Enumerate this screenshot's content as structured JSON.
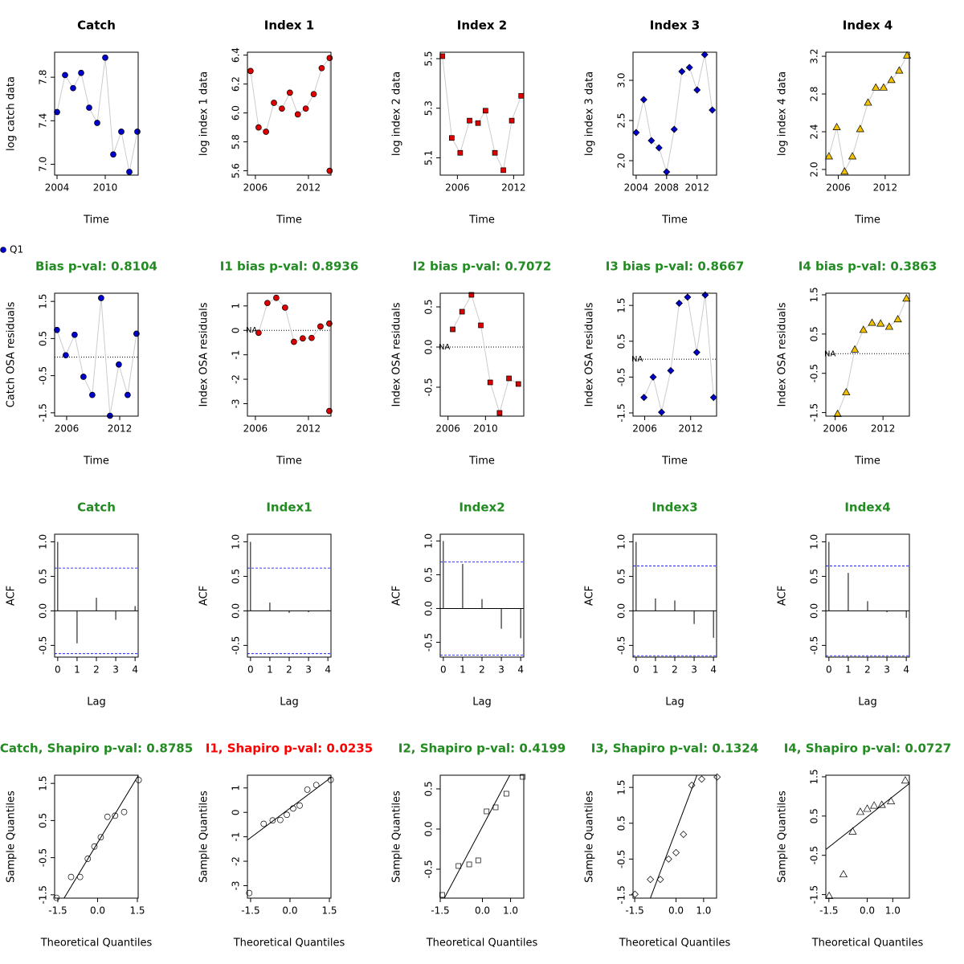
{
  "legend": {
    "label": "Q1",
    "color": "#0000cd"
  },
  "chart_data": [
    {
      "type": "line",
      "title": "Catch",
      "xlabel": "Time",
      "ylabel": "log catch data",
      "marker": "circle",
      "color": "#0000cd",
      "x": [
        2004,
        2005,
        2006,
        2007,
        2008,
        2009,
        2010,
        2011,
        2012,
        2013,
        2014
      ],
      "values": [
        7.48,
        7.82,
        7.7,
        7.84,
        7.52,
        7.38,
        7.98,
        7.09,
        7.3,
        6.93,
        7.3
      ],
      "xlim": [
        2003.7,
        2014.1
      ],
      "ylim": [
        6.9,
        8.03
      ],
      "xticks": [
        2004,
        2010
      ],
      "yticks": [
        {
          "value": 7,
          "label": "7.0"
        },
        7.4,
        7.8
      ]
    },
    {
      "type": "line",
      "title": "Index 1",
      "xlabel": "Time",
      "ylabel": "log index 1 data",
      "marker": "circle",
      "color": "#dd0000",
      "x": [
        2005.45,
        2006.36,
        2007.2,
        2008.1,
        2009.0,
        2009.9,
        2010.8,
        2011.7,
        2012.6,
        2013.5,
        2014.4,
        2014.4
      ],
      "values": [
        6.29,
        5.9,
        5.87,
        6.07,
        6.03,
        6.14,
        5.99,
        6.03,
        6.13,
        6.31,
        6.38,
        5.6
      ],
      "xlim": [
        2005.1,
        2014.55
      ],
      "ylim": [
        5.57,
        6.42
      ],
      "xticks": [
        2006,
        2012
      ],
      "yticks": [
        5.6,
        5.8,
        {
          "value": 6,
          "label": "6.0"
        },
        6.2,
        6.4
      ]
    },
    {
      "type": "line",
      "title": "Index 2",
      "xlabel": "Time",
      "ylabel": "log index 2 data",
      "marker": "square",
      "color": "#dd0000",
      "x": [
        2004.4,
        2005.4,
        2006.3,
        2007.3,
        2008.2,
        2009.0,
        2010.0,
        2010.9,
        2011.8,
        2012.8
      ],
      "values": [
        5.51,
        5.18,
        5.12,
        5.25,
        5.24,
        5.29,
        5.12,
        5.05,
        5.25,
        5.35
      ],
      "xlim": [
        2004.17,
        2013.08
      ],
      "ylim": [
        5.03,
        5.526
      ],
      "xticks": [
        2006,
        2012
      ],
      "yticks": [
        5.1,
        5.3,
        5.5
      ]
    },
    {
      "type": "line",
      "title": "Index 3",
      "xlabel": "Time",
      "ylabel": "log index 3 data",
      "marker": "diamond",
      "color": "#0000cd",
      "x": [
        2004,
        2005,
        2006,
        2007,
        2008,
        2009,
        2010,
        2011,
        2012,
        2013,
        2014
      ],
      "values": [
        2.35,
        2.76,
        2.25,
        2.16,
        1.86,
        2.39,
        3.11,
        3.16,
        2.88,
        3.32,
        2.63
      ],
      "xlim": [
        2003.59,
        2014.56
      ],
      "ylim": [
        1.82,
        3.35
      ],
      "xticks": [
        2004,
        2008,
        2012
      ],
      "yticks": [
        {
          "value": 2,
          "label": "2.0"
        },
        2.5,
        {
          "value": 3,
          "label": "3.0"
        }
      ]
    },
    {
      "type": "line",
      "title": "Index 4",
      "xlabel": "Time",
      "ylabel": "log index 4 data",
      "marker": "triangle",
      "color": "#f2c200",
      "x": [
        2004.8,
        2005.8,
        2006.8,
        2007.8,
        2008.8,
        2009.8,
        2010.8,
        2011.8,
        2012.8,
        2013.8,
        2014.8
      ],
      "values": [
        2.14,
        2.45,
        1.98,
        2.14,
        2.43,
        2.71,
        2.87,
        2.87,
        2.95,
        3.05,
        3.21
      ],
      "xlim": [
        2004.4,
        2015.1
      ],
      "ylim": [
        1.94,
        3.243
      ],
      "xticks": [
        2006,
        2012
      ],
      "yticks": [
        {
          "value": 2,
          "label": "2.0"
        },
        2.4,
        2.8,
        3.2
      ]
    },
    {
      "type": "line",
      "title": "Bias p-val: 0.8104",
      "title_color": "#228b22",
      "xlabel": "Time",
      "ylabel": "Catch OSA residuals",
      "marker": "circle",
      "color": "#0000cd",
      "hline": 0,
      "x": [
        2004.9,
        2005.9,
        2006.9,
        2007.9,
        2008.9,
        2009.9,
        2010.9,
        2011.9,
        2012.9,
        2013.9
      ],
      "values": [
        0.73,
        0.05,
        0.6,
        -0.53,
        -1.02,
        1.59,
        -1.58,
        -0.2,
        -1.02,
        0.63
      ],
      "xlim": [
        2004.64,
        2014.09
      ],
      "ylim": [
        -1.59,
        1.72
      ],
      "xticks": [
        2006,
        2012
      ],
      "yticks": [
        -1.5,
        -0.5,
        0.5,
        1.5
      ]
    },
    {
      "type": "line",
      "title": "I1 bias p-val: 0.8936",
      "title_color": "#228b22",
      "xlabel": "Time",
      "ylabel": "Index OSA residuals",
      "marker": "circle",
      "color": "#dd0000",
      "hline": 0,
      "annotation": "NA",
      "x": [
        2006.36,
        2007.36,
        2008.36,
        2009.36,
        2010.36,
        2011.36,
        2012.36,
        2013.36,
        2014.36,
        2014.36
      ],
      "values": [
        -0.1,
        1.12,
        1.33,
        0.93,
        -0.47,
        -0.33,
        -0.31,
        0.16,
        0.28,
        -3.3
      ],
      "xlim": [
        2005.1,
        2014.55
      ],
      "ylim": [
        -3.51,
        1.52
      ],
      "xticks": [
        2006,
        2012
      ],
      "yticks": [
        -3,
        -2,
        -1,
        0,
        1
      ]
    },
    {
      "type": "line",
      "title": "I2 bias p-val: 0.7072",
      "title_color": "#228b22",
      "xlabel": "Time",
      "ylabel": "Index OSA residuals",
      "marker": "square",
      "color": "#dd0000",
      "hline": 0,
      "annotation": "NA",
      "x": [
        2006.5,
        2007.5,
        2008.5,
        2009.5,
        2010.5,
        2011.5,
        2012.5,
        2013.5
      ],
      "values": [
        0.22,
        0.44,
        0.65,
        0.27,
        -0.44,
        -0.82,
        -0.39,
        -0.46
      ],
      "xlim": [
        2005.17,
        2014.08
      ],
      "ylim": [
        -0.86,
        0.67
      ],
      "xticks": [
        2006,
        2010
      ],
      "yticks": [
        -0.5,
        {
          "value": 0,
          "label": "0.0"
        },
        0.5
      ]
    },
    {
      "type": "line",
      "title": "I3 bias p-val: 0.8667",
      "title_color": "#228b22",
      "xlabel": "Time",
      "ylabel": "Index OSA residuals",
      "marker": "diamond",
      "color": "#0000cd",
      "hline": 0,
      "annotation": "NA",
      "x": [
        2005.9,
        2007.1,
        2008.2,
        2009.4,
        2010.5,
        2011.6,
        2012.8,
        2013.9,
        2015.0
      ],
      "values": [
        -1.07,
        -0.5,
        -1.48,
        -0.32,
        1.56,
        1.73,
        0.19,
        1.79,
        -1.07
      ],
      "xlim": [
        2004.47,
        2015.39
      ],
      "ylim": [
        -1.59,
        1.84
      ],
      "xticks": [
        2006,
        2012
      ],
      "yticks": [
        -1.5,
        -0.5,
        0.5,
        1.5
      ]
    },
    {
      "type": "line",
      "title": "I4 bias p-val: 0.3863",
      "title_color": "#228b22",
      "xlabel": "Time",
      "ylabel": "Index OSA residuals",
      "marker": "triangle",
      "color": "#f2c200",
      "hline": 0,
      "annotation": "NA",
      "x": [
        2006.3,
        2007.38,
        2008.46,
        2009.54,
        2010.62,
        2011.7,
        2012.78,
        2013.86,
        2014.94
      ],
      "values": [
        -1.53,
        -0.98,
        0.11,
        0.61,
        0.79,
        0.77,
        0.69,
        0.88,
        1.41
      ],
      "xlim": [
        2004.82,
        2015.31
      ],
      "ylim": [
        -1.59,
        1.54
      ],
      "xticks": [
        2006,
        2012
      ],
      "yticks": [
        -1.5,
        -0.5,
        0.5,
        1.5
      ]
    },
    {
      "type": "acf",
      "title": "Catch",
      "title_color": "#228b22",
      "xlabel": "Lag",
      "ylabel": "ACF",
      "hline": 0,
      "conf": 0.62,
      "x": [
        0,
        1,
        2,
        3,
        4
      ],
      "values": [
        1.0,
        -0.47,
        0.19,
        -0.13,
        0.07
      ],
      "xlim": [
        -0.16,
        4.16
      ],
      "ylim": [
        -0.67,
        1.11
      ],
      "xticks": [
        0,
        1,
        2,
        3,
        4
      ],
      "yticks": [
        -0.5,
        {
          "value": 0,
          "label": "0.0"
        },
        0.5,
        {
          "value": 1,
          "label": "1.0"
        }
      ]
    },
    {
      "type": "acf",
      "title": "Index1",
      "title_color": "#228b22",
      "xlabel": "Lag",
      "ylabel": "ACF",
      "hline": 0,
      "conf": 0.62,
      "x": [
        0,
        1,
        2,
        3,
        4
      ],
      "values": [
        1.0,
        0.12,
        -0.03,
        -0.02,
        0.01
      ],
      "xlim": [
        -0.16,
        4.16
      ],
      "ylim": [
        -0.67,
        1.11
      ],
      "xticks": [
        0,
        1,
        2,
        3,
        4
      ],
      "yticks": [
        -0.5,
        {
          "value": 0,
          "label": "0.0"
        },
        0.5,
        {
          "value": 1,
          "label": "1.0"
        }
      ]
    },
    {
      "type": "acf",
      "title": "Index2",
      "title_color": "#228b22",
      "xlabel": "Lag",
      "ylabel": "ACF",
      "hline": 0,
      "conf": 0.69,
      "x": [
        0,
        1,
        2,
        3,
        4
      ],
      "values": [
        1.0,
        0.66,
        0.14,
        -0.3,
        -0.44
      ],
      "xlim": [
        -0.16,
        4.16
      ],
      "ylim": [
        -0.72,
        1.1
      ],
      "xticks": [
        0,
        1,
        2,
        3,
        4
      ],
      "yticks": [
        -0.5,
        {
          "value": 0,
          "label": "0.0"
        },
        0.5,
        {
          "value": 1,
          "label": "1.0"
        }
      ]
    },
    {
      "type": "acf",
      "title": "Index3",
      "title_color": "#228b22",
      "xlabel": "Lag",
      "ylabel": "ACF",
      "hline": 0,
      "conf": 0.65,
      "x": [
        0,
        1,
        2,
        3,
        4
      ],
      "values": [
        1.0,
        0.18,
        0.15,
        -0.19,
        -0.39
      ],
      "xlim": [
        -0.16,
        4.16
      ],
      "ylim": [
        -0.67,
        1.11
      ],
      "xticks": [
        0,
        1,
        2,
        3,
        4
      ],
      "yticks": [
        -0.5,
        {
          "value": 0,
          "label": "0.0"
        },
        0.5,
        {
          "value": 1,
          "label": "1.0"
        }
      ]
    },
    {
      "type": "acf",
      "title": "Index4",
      "title_color": "#228b22",
      "xlabel": "Lag",
      "ylabel": "ACF",
      "hline": 0,
      "conf": 0.65,
      "x": [
        0,
        1,
        2,
        3,
        4
      ],
      "values": [
        1.0,
        0.55,
        0.14,
        -0.02,
        -0.1
      ],
      "xlim": [
        -0.16,
        4.16
      ],
      "ylim": [
        -0.67,
        1.11
      ],
      "xticks": [
        0,
        1,
        2,
        3,
        4
      ],
      "yticks": [
        -0.5,
        {
          "value": 0,
          "label": "0.0"
        },
        0.5,
        {
          "value": 1,
          "label": "1.0"
        }
      ]
    },
    {
      "type": "qq",
      "title": "Catch, Shapiro p-val: 0.8785",
      "title_color": "#228b22",
      "xlabel": "Theoretical Quantiles",
      "ylabel": "Sample Quantiles",
      "marker": "circle",
      "x": [
        -1.55,
        -1.0,
        -0.66,
        -0.37,
        -0.12,
        0.12,
        0.37,
        0.66,
        1.0,
        1.55
      ],
      "values": [
        -1.58,
        -1.02,
        -1.02,
        -0.53,
        -0.2,
        0.05,
        0.6,
        0.63,
        0.73,
        1.59
      ],
      "line": {
        "intercept": -0.1,
        "slope": 1.18
      },
      "xlim": [
        -1.62,
        1.53
      ],
      "ylim": [
        -1.59,
        1.72
      ],
      "xticks": [
        -1.5,
        {
          "value": 0,
          "label": "0.0"
        },
        1.5
      ],
      "yticks": [
        -1.5,
        -0.5,
        0.5,
        1.5
      ]
    },
    {
      "type": "qq",
      "title": "I1, Shapiro p-val: 0.0235",
      "title_color": "#ff0000",
      "xlabel": "Theoretical Quantiles",
      "ylabel": "Sample Quantiles",
      "marker": "circle",
      "x": [
        -1.55,
        -1.0,
        -0.66,
        -0.37,
        -0.12,
        0.12,
        0.37,
        0.66,
        1.0,
        1.55
      ],
      "values": [
        -3.3,
        -0.47,
        -0.33,
        -0.31,
        -0.1,
        0.16,
        0.28,
        0.93,
        1.12,
        1.33
      ],
      "line": {
        "intercept": 0.17,
        "slope": 0.805
      },
      "xlim": [
        -1.62,
        1.56
      ],
      "ylim": [
        -3.51,
        1.52
      ],
      "xticks": [
        -1.5,
        {
          "value": 0,
          "label": "0.0"
        },
        1.5
      ],
      "yticks": [
        -3,
        -2,
        -1,
        0,
        1
      ]
    },
    {
      "type": "qq",
      "title": "I2, Shapiro p-val: 0.4199",
      "title_color": "#228b22",
      "xlabel": "Theoretical Quantiles",
      "ylabel": "Sample Quantiles",
      "marker": "square",
      "x": [
        -1.43,
        -0.85,
        -0.47,
        -0.15,
        0.15,
        0.47,
        0.85,
        1.43
      ],
      "values": [
        -0.82,
        -0.46,
        -0.44,
        -0.39,
        0.22,
        0.27,
        0.44,
        0.65
      ],
      "line": {
        "intercept": 0.03,
        "slope": 0.657
      },
      "xlim": [
        -1.5,
        1.47
      ],
      "ylim": [
        -0.86,
        0.67
      ],
      "xticks": [
        -1.5,
        {
          "value": 0,
          "label": "0.0"
        },
        {
          "value": 1,
          "label": "1.0"
        }
      ],
      "yticks": [
        -0.5,
        {
          "value": 0,
          "label": "0.0"
        },
        0.5
      ]
    },
    {
      "type": "qq",
      "title": "I3, Shapiro p-val: 0.1324",
      "title_color": "#228b22",
      "xlabel": "Theoretical Quantiles",
      "ylabel": "Sample Quantiles",
      "marker": "diamond",
      "x": [
        -1.49,
        -0.93,
        -0.57,
        -0.27,
        0,
        0.27,
        0.57,
        0.93,
        1.49
      ],
      "values": [
        -1.48,
        -1.07,
        -1.07,
        -0.5,
        -0.32,
        0.19,
        1.56,
        1.73,
        1.79
      ],
      "line": {
        "intercept": 0.3,
        "slope": 2.03
      },
      "xlim": [
        -1.56,
        1.47
      ],
      "ylim": [
        -1.59,
        1.84
      ],
      "xticks": [
        -1.5,
        {
          "value": 0,
          "label": "0.0"
        },
        {
          "value": 1,
          "label": "1.0"
        }
      ],
      "yticks": [
        -1.5,
        -0.5,
        0.5,
        1.5
      ]
    },
    {
      "type": "qq",
      "title": "I4, Shapiro p-val: 0.0727",
      "title_color": "#228b22",
      "xlabel": "Theoretical Quantiles",
      "ylabel": "Sample Quantiles",
      "marker": "triangle",
      "x": [
        -1.49,
        -0.93,
        -0.57,
        -0.27,
        0,
        0.27,
        0.57,
        0.93,
        1.49
      ],
      "values": [
        -1.53,
        -0.98,
        0.11,
        0.61,
        0.69,
        0.77,
        0.79,
        0.88,
        1.41
      ],
      "line": {
        "intercept": 0.48,
        "slope": 0.514
      },
      "xlim": [
        -1.62,
        1.65
      ],
      "ylim": [
        -1.59,
        1.54
      ],
      "xticks": [
        -1.5,
        {
          "value": 0,
          "label": "0.0"
        },
        {
          "value": 1,
          "label": "1.0"
        }
      ],
      "yticks": [
        -1.5,
        -0.5,
        0.5,
        1.5
      ]
    }
  ]
}
